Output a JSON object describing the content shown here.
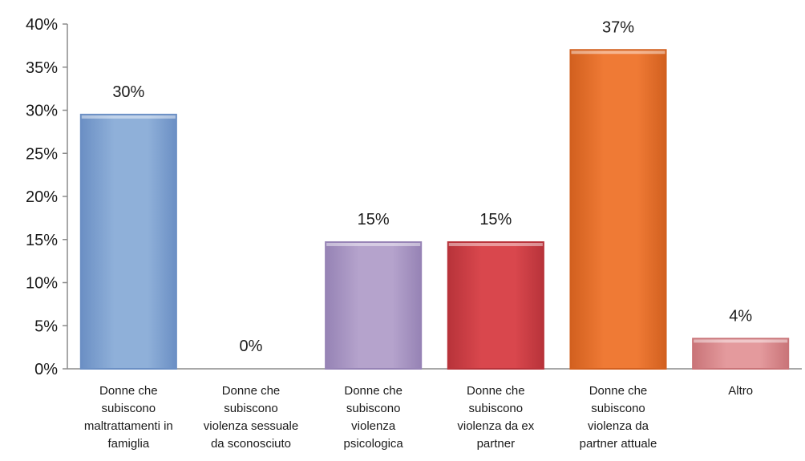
{
  "chart_data": {
    "type": "bar",
    "categories": [
      "Donne che subiscono maltrattamenti in famiglia",
      "Donne che subiscono violenza sessuale da sconosciuto",
      "Donne che subiscono violenza psicologica",
      "Donne che subiscono violenza da ex partner",
      "Donne che subiscono violenza da partner attuale",
      "Altro"
    ],
    "category_lines": [
      [
        "Donne che",
        "subiscono",
        "maltrattamenti in",
        "famiglia"
      ],
      [
        "Donne che",
        "subiscono",
        "violenza sessuale",
        "da sconosciuto"
      ],
      [
        "Donne che",
        "subiscono",
        "violenza",
        "psicologica"
      ],
      [
        "Donne che",
        "subiscono",
        "violenza da ex",
        "partner"
      ],
      [
        "Donne che",
        "subiscono",
        "violenza da",
        "partner attuale"
      ],
      [
        "Altro"
      ]
    ],
    "values": [
      29.5,
      0,
      14.7,
      14.7,
      37,
      3.5
    ],
    "data_labels": [
      "30%",
      "0%",
      "15%",
      "15%",
      "37%",
      "4%"
    ],
    "y_ticks": [
      "0%",
      "5%",
      "10%",
      "15%",
      "20%",
      "25%",
      "30%",
      "35%",
      "40%"
    ],
    "ylim": [
      0,
      40
    ],
    "grid": false,
    "legend": "none",
    "colors": [
      "#8fb0d9",
      "#cccccc",
      "#b5a3cc",
      "#d9474d",
      "#ef7a35",
      "#e49a9d"
    ],
    "edge_colors": [
      "#6b8fc4",
      "#999999",
      "#9683b5",
      "#b8333a",
      "#d2601f",
      "#c97478"
    ]
  }
}
